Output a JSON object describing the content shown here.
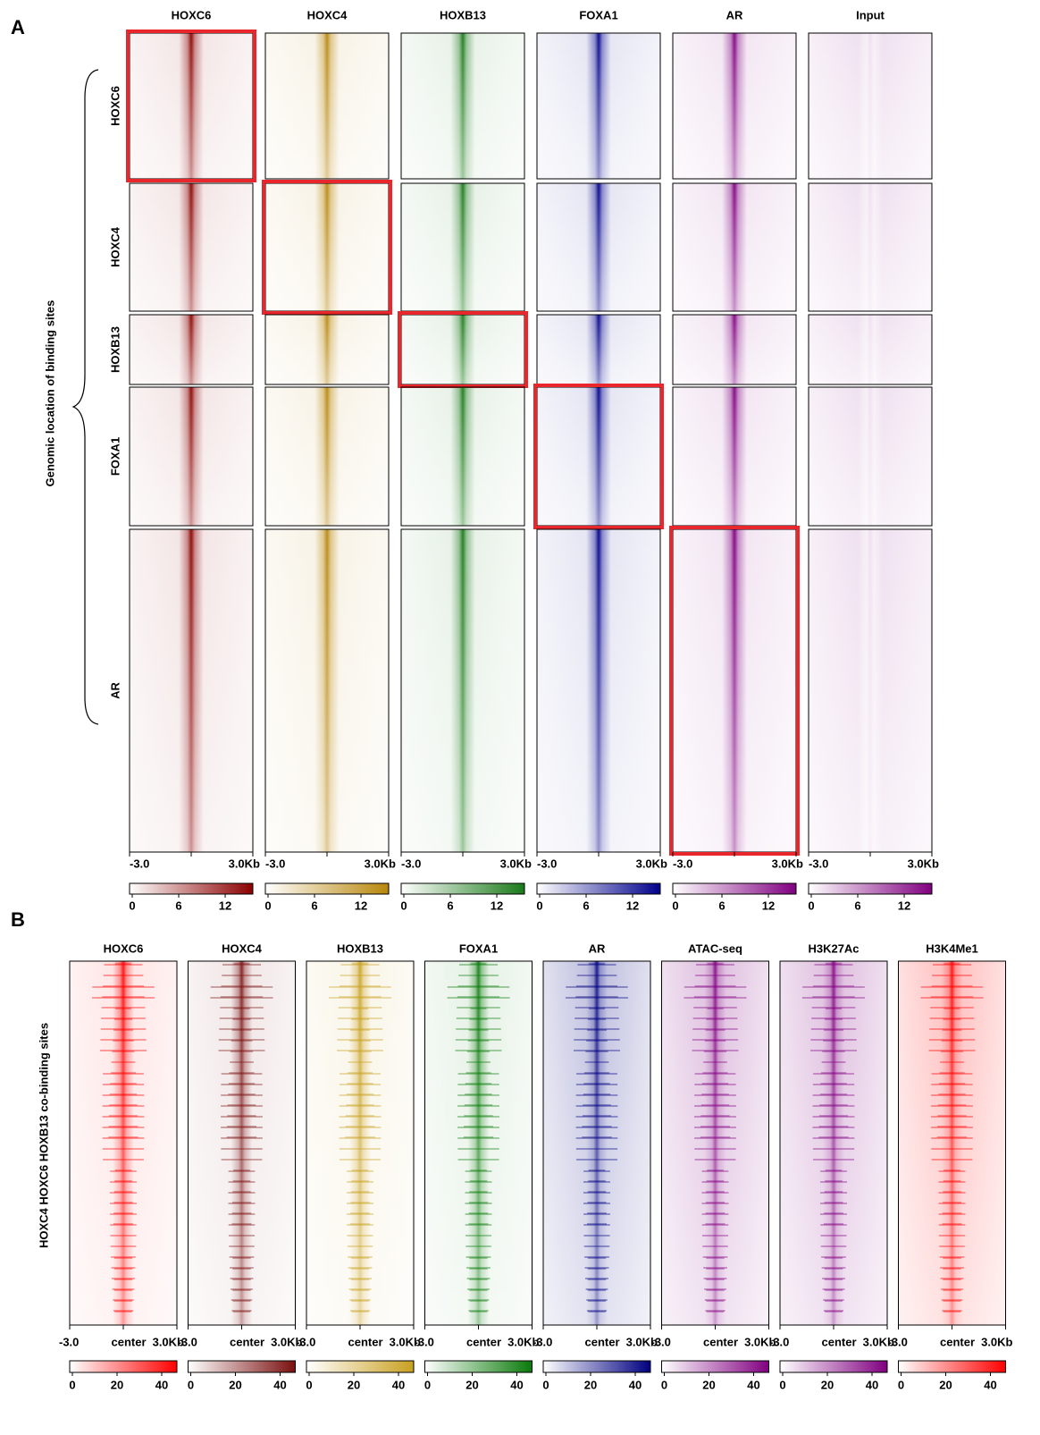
{
  "panel_a": {
    "label": "A",
    "y_label": "Genomic location of binding sites",
    "columns": [
      {
        "title": "HOXC6",
        "color": "#8b0000"
      },
      {
        "title": "HOXC4",
        "color": "#b8860b"
      },
      {
        "title": "HOXB13",
        "color": "#1a7a1a"
      },
      {
        "title": "FOXA1",
        "color": "#00008b"
      },
      {
        "title": "AR",
        "color": "#800080"
      },
      {
        "title": "Input",
        "color": "#800080"
      }
    ],
    "rows": [
      "HOXC6",
      "HOXC4",
      "HOXB13",
      "FOXA1",
      "AR"
    ],
    "x_start": "-3.0",
    "x_end": "3.0Kb",
    "colorbar_ticks": [
      0,
      6,
      12
    ]
  },
  "panel_b": {
    "label": "B",
    "y_label": "HOXC4 HOXC6 HOXB13 co-binding sites",
    "columns": [
      {
        "title": "HOXC6",
        "color": "#ff0000"
      },
      {
        "title": "HOXC4",
        "color": "#7a1010"
      },
      {
        "title": "HOXB13",
        "color": "#c9a020"
      },
      {
        "title": "FOXA1",
        "color": "#0a7a0a"
      },
      {
        "title": "AR",
        "color": "#000080"
      },
      {
        "title": "ATAC-seq",
        "color": "#800080"
      },
      {
        "title": "H3K27Ac",
        "color": "#800080"
      },
      {
        "title": "H3K4Me1",
        "color": "#ff0000"
      }
    ],
    "x_start": "-3.0",
    "x_center": "center",
    "x_end": "3.0Kb",
    "colorbar_ticks": [
      0,
      20,
      40
    ]
  }
}
